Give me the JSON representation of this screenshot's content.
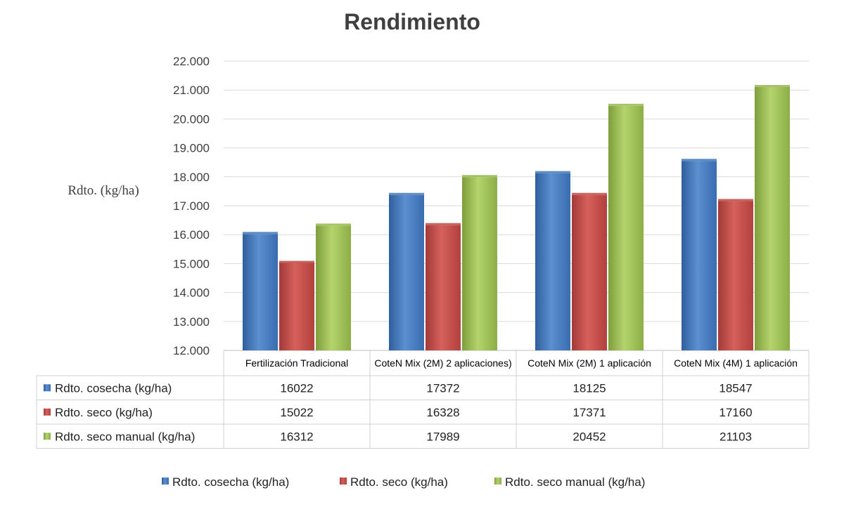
{
  "chart_data": {
    "type": "bar",
    "title": "Rendimiento",
    "ylabel": "Rdto. (kg/ha)",
    "ylim": [
      12000,
      22000
    ],
    "yticks": [
      "12.000",
      "13.000",
      "14.000",
      "15.000",
      "16.000",
      "17.000",
      "18.000",
      "19.000",
      "20.000",
      "21.000",
      "22.000"
    ],
    "grid": true,
    "legend_position": "bottom",
    "categories": [
      "Fertilización Tradicional",
      "CoteN Mix (2M) 2 aplicaciones)",
      "CoteN Mix (2M) 1 aplicación",
      "CoteN Mix (4M) 1 aplicación"
    ],
    "series": [
      {
        "name": "Rdto. cosecha (kg/ha)",
        "color": "#4a7ebb",
        "values": [
          16022,
          17372,
          18125,
          18547
        ],
        "labels": [
          "16022",
          "17372",
          "18125",
          "18547"
        ]
      },
      {
        "name": "Rdto. seco (kg/ha)",
        "color": "#c0504d",
        "values": [
          15022,
          16328,
          17371,
          17160
        ],
        "labels": [
          "15022",
          "16328",
          "17371",
          "17160"
        ]
      },
      {
        "name": "Rdto. seco manual (kg/ha)",
        "color": "#9bbb59",
        "values": [
          16312,
          17989,
          20452,
          21103
        ],
        "labels": [
          "16312",
          "17989",
          "20452",
          "21103"
        ]
      }
    ]
  }
}
